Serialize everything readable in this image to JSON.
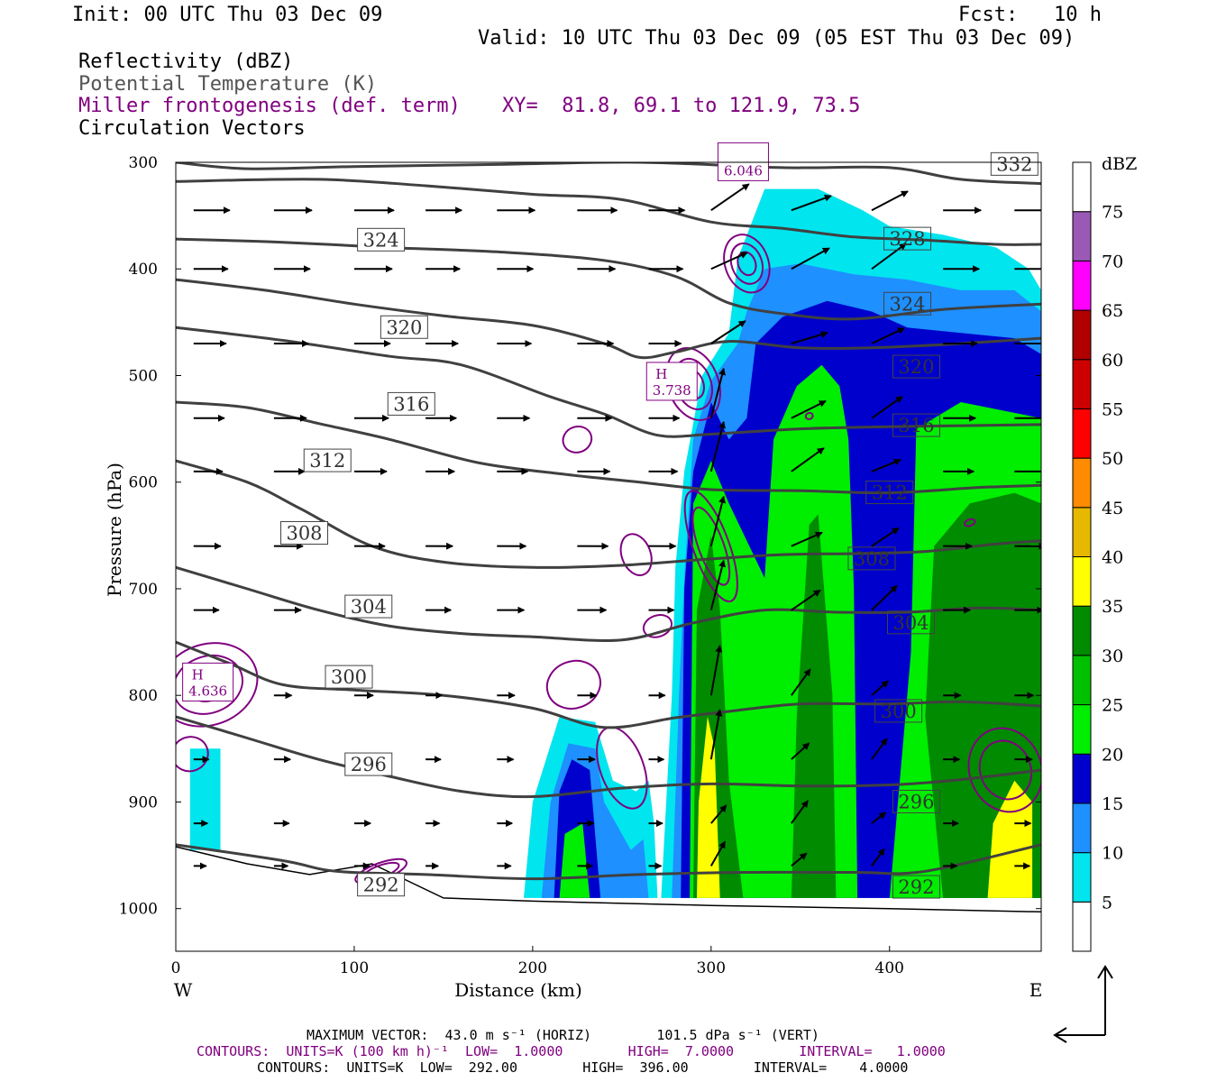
{
  "header": {
    "init": "Init: 00 UTC Thu 03 Dec 09",
    "fcst": "Fcst:   10 h",
    "valid": "Valid: 10 UTC Thu 03 Dec 09 (05 EST Thu 03 Dec 09)",
    "field1": "Reflectivity (dBZ)",
    "field2": "Potential Temperature (K)",
    "field3": "Miller frontogenesis (def. term)",
    "xy": "XY=  81.8, 69.1 to 121.9, 73.5",
    "field4": "Circulation Vectors"
  },
  "footer": {
    "max_vector": "MAXIMUM VECTOR:  43.0 m s⁻¹ (HORIZ)        101.5 dPa s⁻¹ (VERT)",
    "contours_front": "CONTOURS:  UNITS=K (100 km h)⁻¹  LOW=  1.0000        HIGH=  7.0000        INTERVAL=   1.0000",
    "contours_theta": "CONTOURS:  UNITS=K  LOW=  292.00        HIGH=  396.00        INTERVAL=    4.0000"
  },
  "colors": {
    "theta": "#404040",
    "frontogenesis": "#800080",
    "dbz": [
      "#ffffff",
      "#00e5ee",
      "#1e90ff",
      "#0000cd",
      "#00ee00",
      "#00c000",
      "#008b00",
      "#ffff00",
      "#e6b800",
      "#ff8c00",
      "#ff0000",
      "#cd0000",
      "#b00000",
      "#ff00ff",
      "#9b59b6",
      "#ffffff"
    ]
  },
  "chart_data": {
    "type": "cross-section",
    "xlabel": "Distance (km)",
    "ylabel": "Pressure (hPa)",
    "xlim": [
      0,
      485
    ],
    "ylim": [
      300,
      1040
    ],
    "x_ticks": [
      0,
      100,
      200,
      300,
      400
    ],
    "y_ticks": [
      300,
      400,
      500,
      600,
      700,
      800,
      900,
      1000
    ],
    "x_end_labels": {
      "left": "W",
      "right": "E"
    },
    "colorbar": {
      "unit": "dBZ",
      "levels": [
        5,
        10,
        15,
        20,
        25,
        30,
        35,
        40,
        45,
        50,
        55,
        60,
        65,
        70,
        75
      ]
    },
    "theta_contour_labels": [
      "332",
      "328",
      "324",
      "324",
      "320",
      "320",
      "316",
      "316",
      "312",
      "312",
      "308",
      "308",
      "304",
      "304",
      "300",
      "300",
      "296",
      "296",
      "292",
      "292"
    ],
    "theta_contours": [
      {
        "label": "292",
        "points": [
          [
            0,
            940
          ],
          [
            60,
            955
          ],
          [
            90,
            965
          ],
          [
            140,
            968
          ],
          [
            200,
            972
          ],
          [
            260,
            968
          ],
          [
            320,
            966
          ],
          [
            380,
            966
          ],
          [
            420,
            965
          ],
          [
            485,
            940
          ]
        ]
      },
      {
        "label": "296",
        "points": [
          [
            0,
            820
          ],
          [
            40,
            840
          ],
          [
            80,
            860
          ],
          [
            120,
            876
          ],
          [
            160,
            890
          ],
          [
            200,
            895
          ],
          [
            250,
            887
          ],
          [
            300,
            883
          ],
          [
            350,
            885
          ],
          [
            400,
            884
          ],
          [
            440,
            879
          ],
          [
            485,
            870
          ]
        ]
      },
      {
        "label": "300",
        "points": [
          [
            0,
            750
          ],
          [
            30,
            770
          ],
          [
            60,
            790
          ],
          [
            100,
            795
          ],
          [
            150,
            800
          ],
          [
            200,
            812
          ],
          [
            240,
            830
          ],
          [
            280,
            821
          ],
          [
            310,
            815
          ],
          [
            350,
            808
          ],
          [
            400,
            808
          ],
          [
            440,
            806
          ],
          [
            485,
            810
          ]
        ]
      },
      {
        "label": "304",
        "points": [
          [
            0,
            680
          ],
          [
            40,
            700
          ],
          [
            80,
            720
          ],
          [
            120,
            735
          ],
          [
            160,
            742
          ],
          [
            200,
            745
          ],
          [
            250,
            748
          ],
          [
            290,
            732
          ],
          [
            330,
            720
          ],
          [
            370,
            722
          ],
          [
            410,
            722
          ],
          [
            450,
            718
          ],
          [
            485,
            720
          ]
        ]
      },
      {
        "label": "308",
        "points": [
          [
            0,
            580
          ],
          [
            40,
            600
          ],
          [
            70,
            625
          ],
          [
            110,
            660
          ],
          [
            150,
            675
          ],
          [
            200,
            680
          ],
          [
            250,
            678
          ],
          [
            300,
            672
          ],
          [
            340,
            668
          ],
          [
            380,
            667
          ],
          [
            420,
            665
          ],
          [
            460,
            658
          ],
          [
            485,
            655
          ]
        ]
      },
      {
        "label": "312",
        "points": [
          [
            0,
            525
          ],
          [
            40,
            530
          ],
          [
            80,
            545
          ],
          [
            120,
            560
          ],
          [
            170,
            582
          ],
          [
            220,
            593
          ],
          [
            260,
            600
          ],
          [
            300,
            607
          ],
          [
            350,
            608
          ],
          [
            400,
            610
          ],
          [
            450,
            605
          ],
          [
            485,
            603
          ]
        ]
      },
      {
        "label": "316",
        "points": [
          [
            0,
            455
          ],
          [
            60,
            467
          ],
          [
            120,
            482
          ],
          [
            160,
            490
          ],
          [
            210,
            520
          ],
          [
            240,
            536
          ],
          [
            270,
            556
          ],
          [
            300,
            555
          ],
          [
            350,
            550
          ],
          [
            400,
            548
          ],
          [
            440,
            547
          ],
          [
            485,
            546
          ]
        ]
      },
      {
        "label": "320",
        "points": [
          [
            0,
            410
          ],
          [
            50,
            420
          ],
          [
            100,
            433
          ],
          [
            150,
            444
          ],
          [
            200,
            453
          ],
          [
            240,
            470
          ],
          [
            260,
            483
          ],
          [
            280,
            478
          ],
          [
            310,
            468
          ],
          [
            350,
            474
          ],
          [
            390,
            474
          ],
          [
            440,
            470
          ],
          [
            485,
            465
          ]
        ]
      },
      {
        "label": "324",
        "points": [
          [
            0,
            372
          ],
          [
            60,
            375
          ],
          [
            120,
            380
          ],
          [
            180,
            384
          ],
          [
            240,
            392
          ],
          [
            280,
            407
          ],
          [
            310,
            432
          ],
          [
            340,
            442
          ],
          [
            380,
            447
          ],
          [
            430,
            438
          ],
          [
            485,
            433
          ]
        ]
      },
      {
        "label": "328",
        "points": [
          [
            0,
            318
          ],
          [
            80,
            316
          ],
          [
            140,
            322
          ],
          [
            200,
            330
          ],
          [
            250,
            335
          ],
          [
            300,
            356
          ],
          [
            340,
            362
          ],
          [
            380,
            370
          ],
          [
            420,
            373
          ],
          [
            460,
            377
          ],
          [
            485,
            377
          ]
        ]
      },
      {
        "label": "332",
        "points": [
          [
            0,
            300
          ],
          [
            40,
            306
          ],
          [
            100,
            304
          ],
          [
            180,
            302
          ],
          [
            260,
            300
          ],
          [
            340,
            305
          ],
          [
            400,
            305
          ],
          [
            440,
            316
          ],
          [
            485,
            320
          ]
        ]
      }
    ],
    "frontogenesis_maxima": [
      {
        "label": "H",
        "value": "3.738",
        "x": 278,
        "y": 508
      },
      {
        "label": "H",
        "value": "4.636",
        "x": 18,
        "y": 790
      },
      {
        "label": "",
        "value": "6.046",
        "x": 318,
        "y": 302
      }
    ],
    "reflectivity_regions": [
      {
        "dbz": 5,
        "points": [
          [
            8,
            850
          ],
          [
            25,
            850
          ],
          [
            25,
            945
          ],
          [
            8,
            945
          ]
        ]
      },
      {
        "dbz": 5,
        "points": [
          [
            195,
            990
          ],
          [
            200,
            900
          ],
          [
            215,
            820
          ],
          [
            235,
            825
          ],
          [
            245,
            880
          ],
          [
            258,
            890
          ],
          [
            265,
            880
          ],
          [
            268,
            920
          ],
          [
            270,
            990
          ]
        ]
      },
      {
        "dbz": 5,
        "points": [
          [
            272,
            990
          ],
          [
            278,
            800
          ],
          [
            280,
            680
          ],
          [
            285,
            590
          ],
          [
            295,
            500
          ],
          [
            310,
            460
          ],
          [
            315,
            390
          ],
          [
            330,
            325
          ],
          [
            360,
            325
          ],
          [
            385,
            345
          ],
          [
            400,
            360
          ],
          [
            430,
            368
          ],
          [
            460,
            380
          ],
          [
            478,
            400
          ],
          [
            485,
            420
          ],
          [
            485,
            990
          ]
        ]
      },
      {
        "dbz": 10,
        "points": [
          [
            205,
            990
          ],
          [
            210,
            900
          ],
          [
            220,
            845
          ],
          [
            235,
            850
          ],
          [
            240,
            900
          ],
          [
            255,
            945
          ],
          [
            262,
            935
          ],
          [
            265,
            990
          ]
        ]
      },
      {
        "dbz": 10,
        "points": [
          [
            278,
            990
          ],
          [
            282,
            800
          ],
          [
            285,
            690
          ],
          [
            290,
            560
          ],
          [
            300,
            505
          ],
          [
            315,
            470
          ],
          [
            320,
            440
          ],
          [
            330,
            400
          ],
          [
            350,
            395
          ],
          [
            380,
            405
          ],
          [
            410,
            410
          ],
          [
            440,
            420
          ],
          [
            470,
            420
          ],
          [
            485,
            440
          ],
          [
            485,
            990
          ]
        ]
      },
      {
        "dbz": 15,
        "points": [
          [
            212,
            990
          ],
          [
            215,
            890
          ],
          [
            222,
            860
          ],
          [
            232,
            870
          ],
          [
            238,
            990
          ]
        ]
      },
      {
        "dbz": 15,
        "points": [
          [
            283,
            990
          ],
          [
            285,
            700
          ],
          [
            290,
            590
          ],
          [
            300,
            525
          ],
          [
            310,
            560
          ],
          [
            320,
            540
          ],
          [
            325,
            470
          ],
          [
            340,
            445
          ],
          [
            365,
            430
          ],
          [
            390,
            440
          ],
          [
            410,
            455
          ],
          [
            440,
            460
          ],
          [
            470,
            465
          ],
          [
            485,
            480
          ],
          [
            485,
            990
          ]
        ]
      },
      {
        "dbz": 20,
        "points": [
          [
            215,
            990
          ],
          [
            218,
            930
          ],
          [
            228,
            920
          ],
          [
            232,
            990
          ]
        ]
      },
      {
        "dbz": 20,
        "points": [
          [
            288,
            990
          ],
          [
            290,
            620
          ],
          [
            300,
            580
          ],
          [
            310,
            620
          ],
          [
            320,
            655
          ],
          [
            330,
            690
          ],
          [
            335,
            560
          ],
          [
            348,
            510
          ],
          [
            362,
            490
          ],
          [
            372,
            510
          ],
          [
            377,
            560
          ],
          [
            380,
            700
          ],
          [
            382,
            990
          ]
        ]
      },
      {
        "dbz": 20,
        "points": [
          [
            400,
            990
          ],
          [
            412,
            760
          ],
          [
            415,
            550
          ],
          [
            440,
            525
          ],
          [
            470,
            535
          ],
          [
            485,
            540
          ],
          [
            485,
            990
          ]
        ]
      },
      {
        "dbz": 30,
        "points": [
          [
            290,
            990
          ],
          [
            292,
            720
          ],
          [
            300,
            650
          ],
          [
            305,
            720
          ],
          [
            310,
            880
          ],
          [
            318,
            990
          ]
        ]
      },
      {
        "dbz": 30,
        "points": [
          [
            345,
            990
          ],
          [
            348,
            820
          ],
          [
            355,
            640
          ],
          [
            360,
            630
          ],
          [
            368,
            800
          ],
          [
            370,
            990
          ]
        ]
      },
      {
        "dbz": 30,
        "points": [
          [
            430,
            990
          ],
          [
            420,
            820
          ],
          [
            425,
            660
          ],
          [
            445,
            620
          ],
          [
            470,
            610
          ],
          [
            485,
            620
          ],
          [
            485,
            990
          ]
        ]
      },
      {
        "dbz": 35,
        "points": [
          [
            292,
            990
          ],
          [
            293,
            900
          ],
          [
            298,
            820
          ],
          [
            302,
            850
          ],
          [
            305,
            990
          ]
        ]
      },
      {
        "dbz": 35,
        "points": [
          [
            455,
            990
          ],
          [
            458,
            920
          ],
          [
            470,
            880
          ],
          [
            480,
            900
          ],
          [
            480,
            990
          ]
        ]
      }
    ]
  }
}
